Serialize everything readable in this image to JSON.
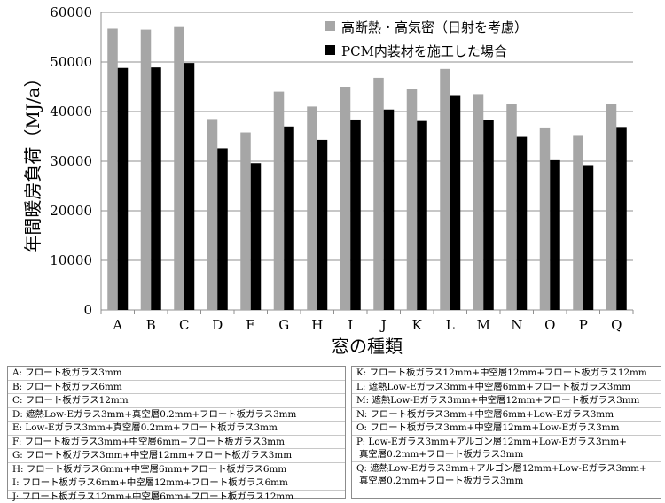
{
  "chart_data": {
    "type": "bar",
    "ylabel": "年間暖房負荷（MJ/a）",
    "xlabel": "窓の種類",
    "ylim": [
      0,
      60000
    ],
    "yticks": [
      0,
      10000,
      20000,
      30000,
      40000,
      50000,
      60000
    ],
    "grid": true,
    "legend_position": "top-right",
    "categories": [
      "A",
      "B",
      "C",
      "D",
      "E",
      "G",
      "H",
      "I",
      "J",
      "K",
      "L",
      "M",
      "N",
      "O",
      "P",
      "Q"
    ],
    "series": [
      {
        "name": "高断熱・高気密（日射を考慮）",
        "color": "#a6a6a6",
        "values": [
          56700,
          56500,
          57200,
          38500,
          35800,
          44000,
          41000,
          45000,
          46800,
          44500,
          48600,
          43500,
          41600,
          36800,
          35100,
          41600
        ]
      },
      {
        "name": "PCM内装材を施工した場合",
        "color": "#000000",
        "values": [
          48800,
          48900,
          49800,
          32600,
          29600,
          37000,
          34300,
          38400,
          40400,
          38100,
          43300,
          38300,
          34900,
          30200,
          29200,
          36900
        ]
      }
    ]
  },
  "window_types": {
    "left": [
      "A: フロート板ガラス3mm",
      "B: フロート板ガラス6mm",
      "C: フロート板ガラス12mm",
      "D: 遮熱Low-Eガラス3mm+真空層0.2mm+フロート板ガラス3mm",
      "E: Low-Eガラス3mm+真空層0.2mm+フロート板ガラス3mm",
      "F: フロート板ガラス3mm+中空層6mm+フロート板ガラス3mm",
      "G: フロート板ガラス3mm+中空層12mm+フロート板ガラス3mm",
      "H: フロート板ガラス6mm+中空層6mm+フロート板ガラス6mm",
      "I: フロート板ガラス6mm+中空層12mm+フロート板ガラス6mm",
      "J: フロート板ガラス12mm+中空層6mm+フロート板ガラス12mm"
    ],
    "right": [
      "K: フロート板ガラス12mm+中空層12mm+フロート板ガラス12mm",
      "L: 遮熱Low-Eガラス3mm+中空層6mm+フロート板ガラス3mm",
      "M: 遮熱Low-Eガラス3mm+中空層12mm+フロート板ガラス3mm",
      "N: フロート板ガラス3mm+中空層6mm+Low-Eガラス3mm",
      "O: フロート板ガラス3mm+中空層12mm+Low-Eガラス3mm",
      "P: Low-Eガラス3mm+アルゴン層12mm+Low-Eガラス3mm+",
      "P2: 真空層0.2mm+フロート板ガラス3mm",
      "Q: 遮熱Low-Eガラス3mm+アルゴン層12mm+Low-Eガラス3mm+",
      "Q2: 真空層0.2mm+フロート板ガラス3mm"
    ],
    "P_line1": "P: Low-Eガラス3mm+アルゴン層12mm+Low-Eガラス3mm+",
    "P_line2": "真空層0.2mm+フロート板ガラス3mm",
    "Q_line1": "Q: 遮熱Low-Eガラス3mm+アルゴン層12mm+Low-Eガラス3mm+",
    "Q_line2": "真空層0.2mm+フロート板ガラス3mm"
  }
}
